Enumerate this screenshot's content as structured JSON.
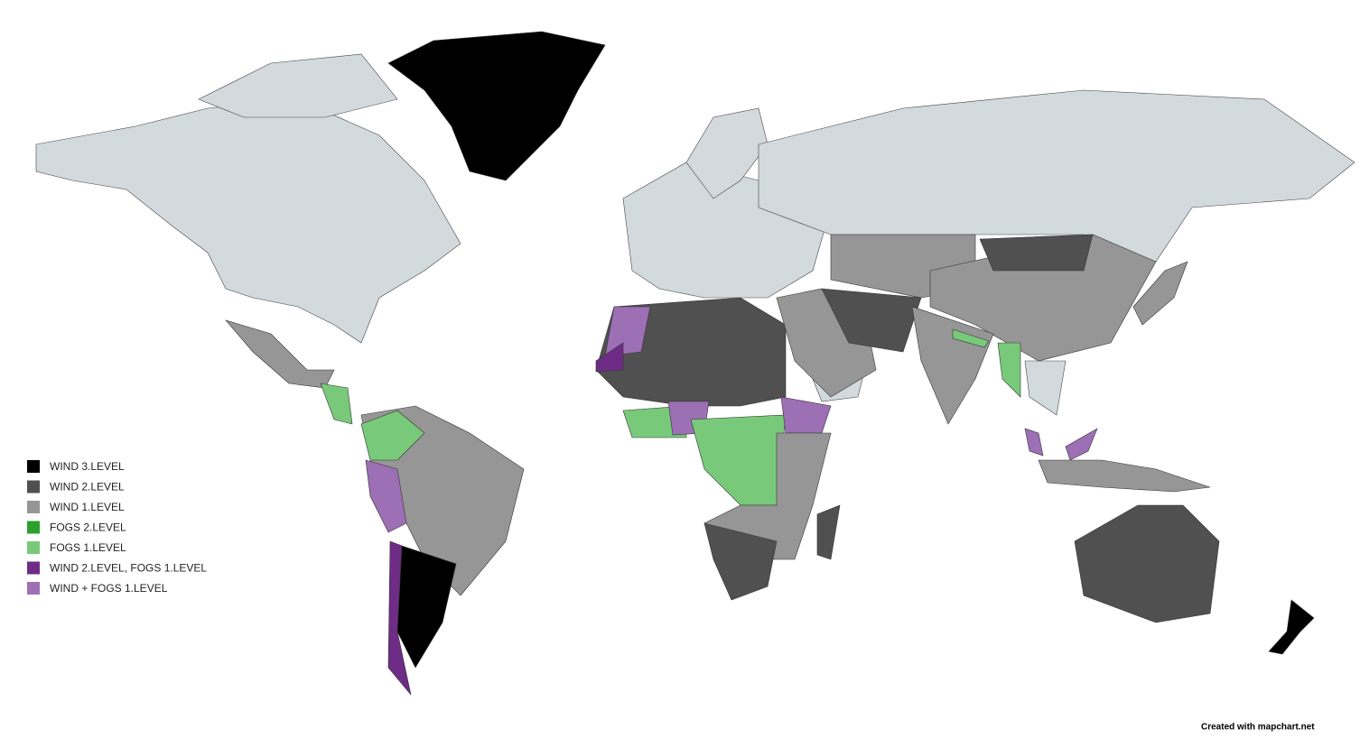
{
  "legend": {
    "items": [
      {
        "label": "WIND 3.LEVEL",
        "color": "#000000"
      },
      {
        "label": "WIND 2.LEVEL",
        "color": "#505050"
      },
      {
        "label": "WIND 1.LEVEL",
        "color": "#969696"
      },
      {
        "label": "FOGS 2.LEVEL",
        "color": "#2ca02c"
      },
      {
        "label": "FOGS 1.LEVEL",
        "color": "#79c97a"
      },
      {
        "label": "WIND 2.LEVEL, FOGS 1.LEVEL",
        "color": "#6e2c86"
      },
      {
        "label": "WIND + FOGS 1.LEVEL",
        "color": "#9d6fb5"
      }
    ]
  },
  "credit": "Created with mapchart.net"
}
